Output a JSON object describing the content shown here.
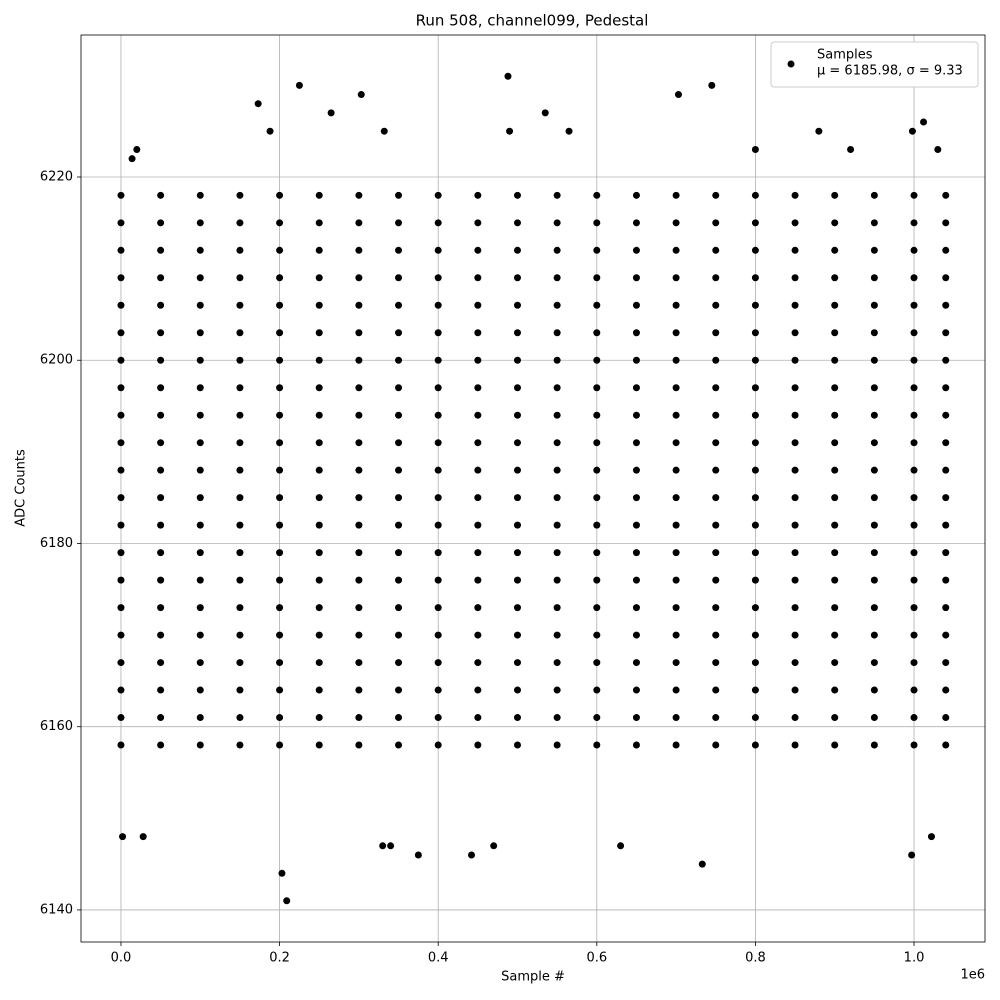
{
  "chart_data": {
    "type": "scatter",
    "title": "Run 508, channel099, Pedestal",
    "x_label": "Sample #",
    "y_label": "ADC Counts",
    "x_offset_label": "1e6",
    "legend_note": "μ = 6185.98, σ = 9.33",
    "legend_position": "upper right",
    "grid": true,
    "xlim": [
      -50400,
      1089500
    ],
    "ylim": [
      6136.5,
      6235.5
    ],
    "xticks": [
      {
        "value": 0,
        "label": "0.0"
      },
      {
        "value": 200000,
        "label": "0.2"
      },
      {
        "value": 400000,
        "label": "0.4"
      },
      {
        "value": 600000,
        "label": "0.6"
      },
      {
        "value": 800000,
        "label": "0.8"
      },
      {
        "value": 1000000,
        "label": "1.0"
      }
    ],
    "yticks": [
      6140,
      6160,
      6180,
      6200,
      6220
    ],
    "series": [
      {
        "name": "Samples",
        "color": "#000000",
        "x": [
          0,
          50000,
          100000,
          150000,
          200000,
          250000,
          300000,
          350000,
          400000,
          450000,
          500000,
          550000,
          600000,
          650000,
          700000,
          750000,
          800000,
          850000,
          900000,
          950000,
          1000000,
          1040000,
          0,
          50000,
          100000,
          150000,
          200000,
          250000,
          300000,
          350000,
          400000,
          450000,
          500000,
          550000,
          600000,
          650000,
          700000,
          750000,
          800000,
          850000,
          900000,
          950000,
          1000000,
          1040000,
          0,
          50000,
          100000,
          150000,
          200000,
          250000,
          300000,
          350000,
          400000,
          450000,
          500000,
          550000,
          600000,
          650000,
          700000,
          750000,
          800000,
          850000,
          900000,
          950000,
          1000000,
          1040000,
          0,
          50000,
          100000,
          150000,
          200000,
          250000,
          300000,
          350000,
          400000,
          450000,
          500000,
          550000,
          600000,
          650000,
          700000,
          750000,
          800000,
          850000,
          900000,
          950000,
          1000000,
          1040000,
          0,
          50000,
          100000,
          150000,
          200000,
          250000,
          300000,
          350000,
          400000,
          450000,
          500000,
          550000,
          600000,
          650000,
          700000,
          750000,
          800000,
          850000,
          900000,
          950000,
          1000000,
          1040000,
          0,
          50000,
          100000,
          150000,
          200000,
          250000,
          300000,
          350000,
          400000,
          450000,
          500000,
          550000,
          600000,
          650000,
          700000,
          750000,
          800000,
          850000,
          900000,
          950000,
          1000000,
          1040000,
          0,
          50000,
          100000,
          150000,
          200000,
          250000,
          300000,
          350000,
          400000,
          450000,
          500000,
          550000,
          600000,
          650000,
          700000,
          750000,
          800000,
          850000,
          900000,
          950000,
          1000000,
          1040000,
          0,
          50000,
          100000,
          150000,
          200000,
          250000,
          300000,
          350000,
          400000,
          450000,
          500000,
          550000,
          600000,
          650000,
          700000,
          750000,
          800000,
          850000,
          900000,
          950000,
          1000000,
          1040000,
          0,
          50000,
          100000,
          150000,
          200000,
          250000,
          300000,
          350000,
          400000,
          450000,
          500000,
          550000,
          600000,
          650000,
          700000,
          750000,
          800000,
          850000,
          900000,
          950000,
          1000000,
          1040000,
          0,
          50000,
          100000,
          150000,
          200000,
          250000,
          300000,
          350000,
          400000,
          450000,
          500000,
          550000,
          600000,
          650000,
          700000,
          750000,
          800000,
          850000,
          900000,
          950000,
          1000000,
          1040000,
          0,
          50000,
          100000,
          150000,
          200000,
          250000,
          300000,
          350000,
          400000,
          450000,
          500000,
          550000,
          600000,
          650000,
          700000,
          750000,
          800000,
          850000,
          900000,
          950000,
          1000000,
          1040000,
          0,
          50000,
          100000,
          150000,
          200000,
          250000,
          300000,
          350000,
          400000,
          450000,
          500000,
          550000,
          600000,
          650000,
          700000,
          750000,
          800000,
          850000,
          900000,
          950000,
          1000000,
          1040000,
          0,
          50000,
          100000,
          150000,
          200000,
          250000,
          300000,
          350000,
          400000,
          450000,
          500000,
          550000,
          600000,
          650000,
          700000,
          750000,
          800000,
          850000,
          900000,
          950000,
          1000000,
          1040000,
          0,
          50000,
          100000,
          150000,
          200000,
          250000,
          300000,
          350000,
          400000,
          450000,
          500000,
          550000,
          600000,
          650000,
          700000,
          750000,
          800000,
          850000,
          900000,
          950000,
          1000000,
          1040000,
          0,
          50000,
          100000,
          150000,
          200000,
          250000,
          300000,
          350000,
          400000,
          450000,
          500000,
          550000,
          600000,
          650000,
          700000,
          750000,
          800000,
          850000,
          900000,
          950000,
          1000000,
          1040000,
          0,
          50000,
          100000,
          150000,
          200000,
          250000,
          300000,
          350000,
          400000,
          450000,
          500000,
          550000,
          600000,
          650000,
          700000,
          750000,
          800000,
          850000,
          900000,
          950000,
          1000000,
          1040000,
          0,
          50000,
          100000,
          150000,
          200000,
          250000,
          300000,
          350000,
          400000,
          450000,
          500000,
          550000,
          600000,
          650000,
          700000,
          750000,
          800000,
          850000,
          900000,
          950000,
          1000000,
          1040000,
          0,
          50000,
          100000,
          150000,
          200000,
          250000,
          300000,
          350000,
          400000,
          450000,
          500000,
          550000,
          600000,
          650000,
          700000,
          750000,
          800000,
          850000,
          900000,
          950000,
          1000000,
          1040000,
          0,
          50000,
          100000,
          150000,
          200000,
          250000,
          300000,
          350000,
          400000,
          450000,
          500000,
          550000,
          600000,
          650000,
          700000,
          750000,
          800000,
          850000,
          900000,
          950000,
          1000000,
          1040000,
          0,
          50000,
          100000,
          150000,
          200000,
          250000,
          300000,
          350000,
          400000,
          450000,
          500000,
          550000,
          600000,
          650000,
          700000,
          750000,
          800000,
          850000,
          900000,
          950000,
          1000000,
          1040000,
          0,
          50000,
          100000,
          150000,
          200000,
          250000,
          300000,
          350000,
          400000,
          450000,
          500000,
          550000,
          600000,
          650000,
          700000,
          750000,
          800000,
          850000,
          900000,
          950000,
          1000000,
          1040000,
          2000,
          28000,
          14000,
          20000,
          173000,
          188000,
          203000,
          209000,
          225000,
          265000,
          303000,
          332000,
          330000,
          340000,
          375000,
          442000,
          470000,
          488000,
          490000,
          535000,
          565000,
          630000,
          703000,
          733000,
          745000,
          800000,
          880000,
          920000,
          997000,
          998000,
          1012000,
          1022000,
          1030000
        ],
        "y": [
          6158,
          6158,
          6158,
          6158,
          6158,
          6158,
          6158,
          6158,
          6158,
          6158,
          6158,
          6158,
          6158,
          6158,
          6158,
          6158,
          6158,
          6158,
          6158,
          6158,
          6158,
          6158,
          6161,
          6161,
          6161,
          6161,
          6161,
          6161,
          6161,
          6161,
          6161,
          6161,
          6161,
          6161,
          6161,
          6161,
          6161,
          6161,
          6161,
          6161,
          6161,
          6161,
          6161,
          6161,
          6164,
          6164,
          6164,
          6164,
          6164,
          6164,
          6164,
          6164,
          6164,
          6164,
          6164,
          6164,
          6164,
          6164,
          6164,
          6164,
          6164,
          6164,
          6164,
          6164,
          6164,
          6164,
          6167,
          6167,
          6167,
          6167,
          6167,
          6167,
          6167,
          6167,
          6167,
          6167,
          6167,
          6167,
          6167,
          6167,
          6167,
          6167,
          6167,
          6167,
          6167,
          6167,
          6167,
          6167,
          6170,
          6170,
          6170,
          6170,
          6170,
          6170,
          6170,
          6170,
          6170,
          6170,
          6170,
          6170,
          6170,
          6170,
          6170,
          6170,
          6170,
          6170,
          6170,
          6170,
          6170,
          6170,
          6173,
          6173,
          6173,
          6173,
          6173,
          6173,
          6173,
          6173,
          6173,
          6173,
          6173,
          6173,
          6173,
          6173,
          6173,
          6173,
          6173,
          6173,
          6173,
          6173,
          6173,
          6173,
          6176,
          6176,
          6176,
          6176,
          6176,
          6176,
          6176,
          6176,
          6176,
          6176,
          6176,
          6176,
          6176,
          6176,
          6176,
          6176,
          6176,
          6176,
          6176,
          6176,
          6176,
          6176,
          6179,
          6179,
          6179,
          6179,
          6179,
          6179,
          6179,
          6179,
          6179,
          6179,
          6179,
          6179,
          6179,
          6179,
          6179,
          6179,
          6179,
          6179,
          6179,
          6179,
          6179,
          6179,
          6182,
          6182,
          6182,
          6182,
          6182,
          6182,
          6182,
          6182,
          6182,
          6182,
          6182,
          6182,
          6182,
          6182,
          6182,
          6182,
          6182,
          6182,
          6182,
          6182,
          6182,
          6182,
          6185,
          6185,
          6185,
          6185,
          6185,
          6185,
          6185,
          6185,
          6185,
          6185,
          6185,
          6185,
          6185,
          6185,
          6185,
          6185,
          6185,
          6185,
          6185,
          6185,
          6185,
          6185,
          6188,
          6188,
          6188,
          6188,
          6188,
          6188,
          6188,
          6188,
          6188,
          6188,
          6188,
          6188,
          6188,
          6188,
          6188,
          6188,
          6188,
          6188,
          6188,
          6188,
          6188,
          6188,
          6191,
          6191,
          6191,
          6191,
          6191,
          6191,
          6191,
          6191,
          6191,
          6191,
          6191,
          6191,
          6191,
          6191,
          6191,
          6191,
          6191,
          6191,
          6191,
          6191,
          6191,
          6191,
          6194,
          6194,
          6194,
          6194,
          6194,
          6194,
          6194,
          6194,
          6194,
          6194,
          6194,
          6194,
          6194,
          6194,
          6194,
          6194,
          6194,
          6194,
          6194,
          6194,
          6194,
          6194,
          6197,
          6197,
          6197,
          6197,
          6197,
          6197,
          6197,
          6197,
          6197,
          6197,
          6197,
          6197,
          6197,
          6197,
          6197,
          6197,
          6197,
          6197,
          6197,
          6197,
          6197,
          6197,
          6200,
          6200,
          6200,
          6200,
          6200,
          6200,
          6200,
          6200,
          6200,
          6200,
          6200,
          6200,
          6200,
          6200,
          6200,
          6200,
          6200,
          6200,
          6200,
          6200,
          6200,
          6200,
          6203,
          6203,
          6203,
          6203,
          6203,
          6203,
          6203,
          6203,
          6203,
          6203,
          6203,
          6203,
          6203,
          6203,
          6203,
          6203,
          6203,
          6203,
          6203,
          6203,
          6203,
          6203,
          6206,
          6206,
          6206,
          6206,
          6206,
          6206,
          6206,
          6206,
          6206,
          6206,
          6206,
          6206,
          6206,
          6206,
          6206,
          6206,
          6206,
          6206,
          6206,
          6206,
          6206,
          6206,
          6209,
          6209,
          6209,
          6209,
          6209,
          6209,
          6209,
          6209,
          6209,
          6209,
          6209,
          6209,
          6209,
          6209,
          6209,
          6209,
          6209,
          6209,
          6209,
          6209,
          6209,
          6209,
          6212,
          6212,
          6212,
          6212,
          6212,
          6212,
          6212,
          6212,
          6212,
          6212,
          6212,
          6212,
          6212,
          6212,
          6212,
          6212,
          6212,
          6212,
          6212,
          6212,
          6212,
          6212,
          6215,
          6215,
          6215,
          6215,
          6215,
          6215,
          6215,
          6215,
          6215,
          6215,
          6215,
          6215,
          6215,
          6215,
          6215,
          6215,
          6215,
          6215,
          6215,
          6215,
          6215,
          6215,
          6218,
          6218,
          6218,
          6218,
          6218,
          6218,
          6218,
          6218,
          6218,
          6218,
          6218,
          6218,
          6218,
          6218,
          6218,
          6218,
          6218,
          6218,
          6218,
          6218,
          6218,
          6218,
          6148,
          6148,
          6222,
          6223,
          6228,
          6225,
          6144,
          6141,
          6230,
          6227,
          6229,
          6225,
          6147,
          6147,
          6146,
          6146,
          6147,
          6231,
          6225,
          6227,
          6225,
          6147,
          6229,
          6145,
          6230,
          6223,
          6225,
          6223,
          6146,
          6225,
          6226,
          6148,
          6223
        ]
      }
    ]
  }
}
